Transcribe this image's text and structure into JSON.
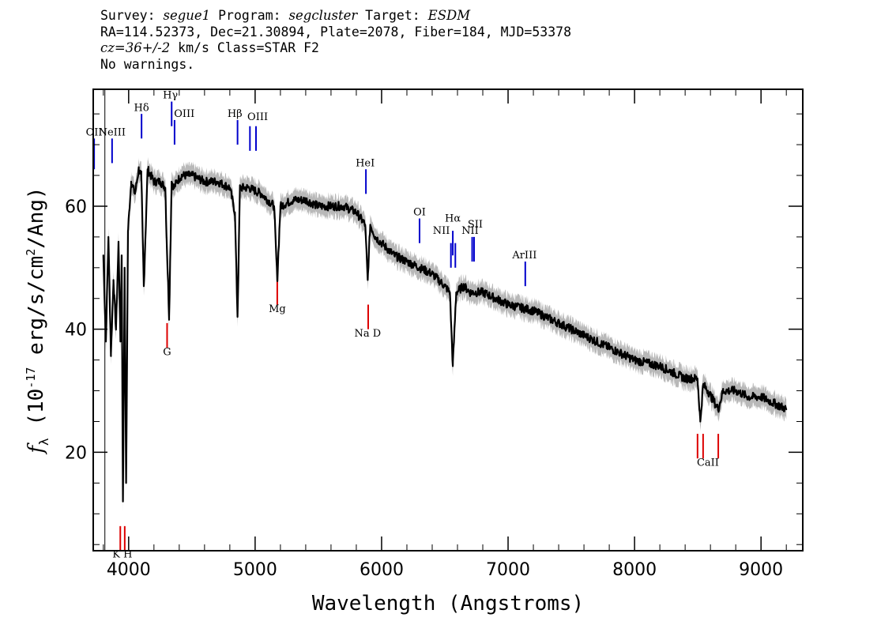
{
  "header": {
    "survey_label": "Survey:",
    "survey": "segue1",
    "program_label": "Program:",
    "program": "segcluster",
    "target_label": "Target:",
    "target": "ESDM",
    "line2": "RA=114.52373, Dec=21.30894, Plate=2078, Fiber=184, MJD=53378",
    "cz": "cz=36+/-2",
    "cz_rest": " km/s Class=STAR F2",
    "warnings": "No warnings."
  },
  "chart_data": {
    "type": "line",
    "xlabel": "Wavelength (Angstroms)",
    "ylabel_prefix": "f",
    "ylabel_sub": "λ",
    "ylabel_main": " (10",
    "ylabel_exp": "-17",
    "ylabel_mid": " erg/s/cm",
    "ylabel_exp2": "2",
    "ylabel_end": "/Ang)",
    "xlim": [
      3720,
      9330
    ],
    "ylim": [
      4,
      79
    ],
    "x_ticks": [
      4000,
      5000,
      6000,
      7000,
      8000,
      9000
    ],
    "x_tick_labels": [
      "4000",
      "5000",
      "6000",
      "7000",
      "8000",
      "9000"
    ],
    "y_ticks": [
      20,
      40,
      60
    ],
    "y_tick_labels": [
      "20",
      "40",
      "60"
    ],
    "series": [
      {
        "color": "#000000",
        "x": [
          3800,
          3820,
          3840,
          3860,
          3880,
          3900,
          3920,
          3935,
          3945,
          3955,
          3968,
          3980,
          3995,
          4020,
          4050,
          4080,
          4100,
          4120,
          4150,
          4200,
          4250,
          4290,
          4300,
          4320,
          4340,
          4360,
          4380,
          4420,
          4500,
          4600,
          4700,
          4800,
          4840,
          4861,
          4880,
          4950,
          5050,
          5150,
          5175,
          5200,
          5300,
          5400,
          5500,
          5600,
          5700,
          5800,
          5870,
          5890,
          5910,
          5950,
          6000,
          6100,
          6200,
          6300,
          6400,
          6500,
          6540,
          6563,
          6590,
          6650,
          6700,
          6800,
          7000,
          7200,
          7400,
          7600,
          7800,
          8000,
          8200,
          8400,
          8498,
          8520,
          8542,
          8580,
          8662,
          8700,
          8800,
          8900,
          9000,
          9100,
          9200
        ],
        "y": [
          52,
          38,
          55,
          36,
          48,
          40,
          54,
          38,
          52,
          12,
          50,
          15,
          56,
          64,
          62,
          66,
          65,
          47,
          66,
          64,
          64,
          63,
          55,
          42,
          64,
          63,
          64,
          65,
          65,
          64,
          64,
          63,
          59,
          42,
          63,
          63,
          62,
          60,
          48,
          60,
          61,
          61,
          60,
          60,
          60,
          59,
          57,
          48,
          57,
          55,
          54,
          52,
          51,
          50,
          49,
          47,
          46,
          34,
          46,
          47,
          46,
          46,
          44,
          43,
          41,
          39,
          37,
          35,
          34,
          32,
          32,
          25,
          31,
          30,
          27,
          30,
          30,
          29,
          29,
          28,
          27
        ]
      }
    ],
    "emission_lines": [
      {
        "name": "OII",
        "x": 3727,
        "top": 71,
        "bottom": 66
      },
      {
        "name": "NeIII",
        "x": 3869,
        "top": 71,
        "bottom": 67
      },
      {
        "name": "Hδ",
        "x": 4102,
        "top": 75,
        "bottom": 71
      },
      {
        "name": "Hγ",
        "x": 4340,
        "top": 77,
        "bottom": 73
      },
      {
        "name": "OIII",
        "x": 4363,
        "top": 74,
        "bottom": 70
      },
      {
        "name": "Hβ",
        "x": 4861,
        "top": 74,
        "bottom": 70
      },
      {
        "name": "OIII",
        "x": 4959,
        "top": 73,
        "bottom": 69
      },
      {
        "name": "OIII",
        "x": 5007,
        "top": 73,
        "bottom": 69
      },
      {
        "name": "HeI",
        "x": 5876,
        "top": 66,
        "bottom": 62
      },
      {
        "name": "OI",
        "x": 6300,
        "top": 58,
        "bottom": 54
      },
      {
        "name": "NII",
        "x": 6548,
        "top": 54,
        "bottom": 50
      },
      {
        "name": "Hα",
        "x": 6563,
        "top": 56,
        "bottom": 52
      },
      {
        "name": "NII",
        "x": 6583,
        "top": 54,
        "bottom": 50
      },
      {
        "name": "SII",
        "x": 6716,
        "top": 55,
        "bottom": 51
      },
      {
        "name": "SII",
        "x": 6731,
        "top": 55,
        "bottom": 51
      },
      {
        "name": "ArIII",
        "x": 7136,
        "top": 51,
        "bottom": 47
      }
    ],
    "emission_labels": [
      {
        "text": "OII",
        "x": 3727,
        "y": 71.5,
        "anchor": "middle"
      },
      {
        "text": "NeIII",
        "x": 3869,
        "y": 71.5,
        "anchor": "middle"
      },
      {
        "text": "Hδ",
        "x": 4102,
        "y": 75.5,
        "anchor": "middle"
      },
      {
        "text": "Hγ",
        "x": 4330,
        "y": 77.5,
        "anchor": "middle"
      },
      {
        "text": "OIII",
        "x": 4440,
        "y": 74.5,
        "anchor": "middle"
      },
      {
        "text": "Hβ",
        "x": 4840,
        "y": 74.5,
        "anchor": "middle"
      },
      {
        "text": "OIII",
        "x": 5020,
        "y": 74,
        "anchor": "middle"
      },
      {
        "text": "HeI",
        "x": 5870,
        "y": 66.5,
        "anchor": "middle"
      },
      {
        "text": "OI",
        "x": 6300,
        "y": 58.5,
        "anchor": "middle"
      },
      {
        "text": "NII",
        "x": 6540,
        "y": 55.5,
        "anchor": "end"
      },
      {
        "text": "Hα",
        "x": 6563,
        "y": 57.5,
        "anchor": "middle"
      },
      {
        "text": "NII",
        "x": 6700,
        "y": 55.5,
        "anchor": "middle"
      },
      {
        "text": "SII",
        "x": 6740,
        "y": 56.5,
        "anchor": "middle"
      },
      {
        "text": "ArIII",
        "x": 7130,
        "y": 51.5,
        "anchor": "middle"
      }
    ],
    "absorption_lines": [
      {
        "name": "K",
        "x": 3934,
        "top": 8,
        "bottom": 4
      },
      {
        "name": "H",
        "x": 3969,
        "top": 8,
        "bottom": 4
      },
      {
        "name": "G",
        "x": 4304,
        "top": 41,
        "bottom": 37
      },
      {
        "name": "Mg",
        "x": 5175,
        "top": 48,
        "bottom": 44
      },
      {
        "name": "Na",
        "x": 5894,
        "top": 44,
        "bottom": 40
      },
      {
        "name": "CaII",
        "x": 8498,
        "top": 23,
        "bottom": 19
      },
      {
        "name": "CaII",
        "x": 8542,
        "top": 23,
        "bottom": 19
      },
      {
        "name": "CaII",
        "x": 8662,
        "top": 23,
        "bottom": 19
      }
    ],
    "absorption_labels": [
      {
        "text": "K H",
        "x": 3950,
        "y": 2.9,
        "anchor": "middle"
      },
      {
        "text": "G",
        "x": 4304,
        "y": 35.8,
        "anchor": "middle"
      },
      {
        "text": "Mg",
        "x": 5175,
        "y": 42.8,
        "anchor": "middle"
      },
      {
        "text": "Na  D",
        "x": 5890,
        "y": 38.8,
        "anchor": "middle"
      },
      {
        "text": "CaII",
        "x": 8580,
        "y": 17.8,
        "anchor": "middle"
      }
    ],
    "colors": {
      "spectrum": "#000000",
      "error_band": "#b8b8b8",
      "emission": "#0000cc",
      "absorption": "#dd0000",
      "sky": "#000000"
    }
  }
}
